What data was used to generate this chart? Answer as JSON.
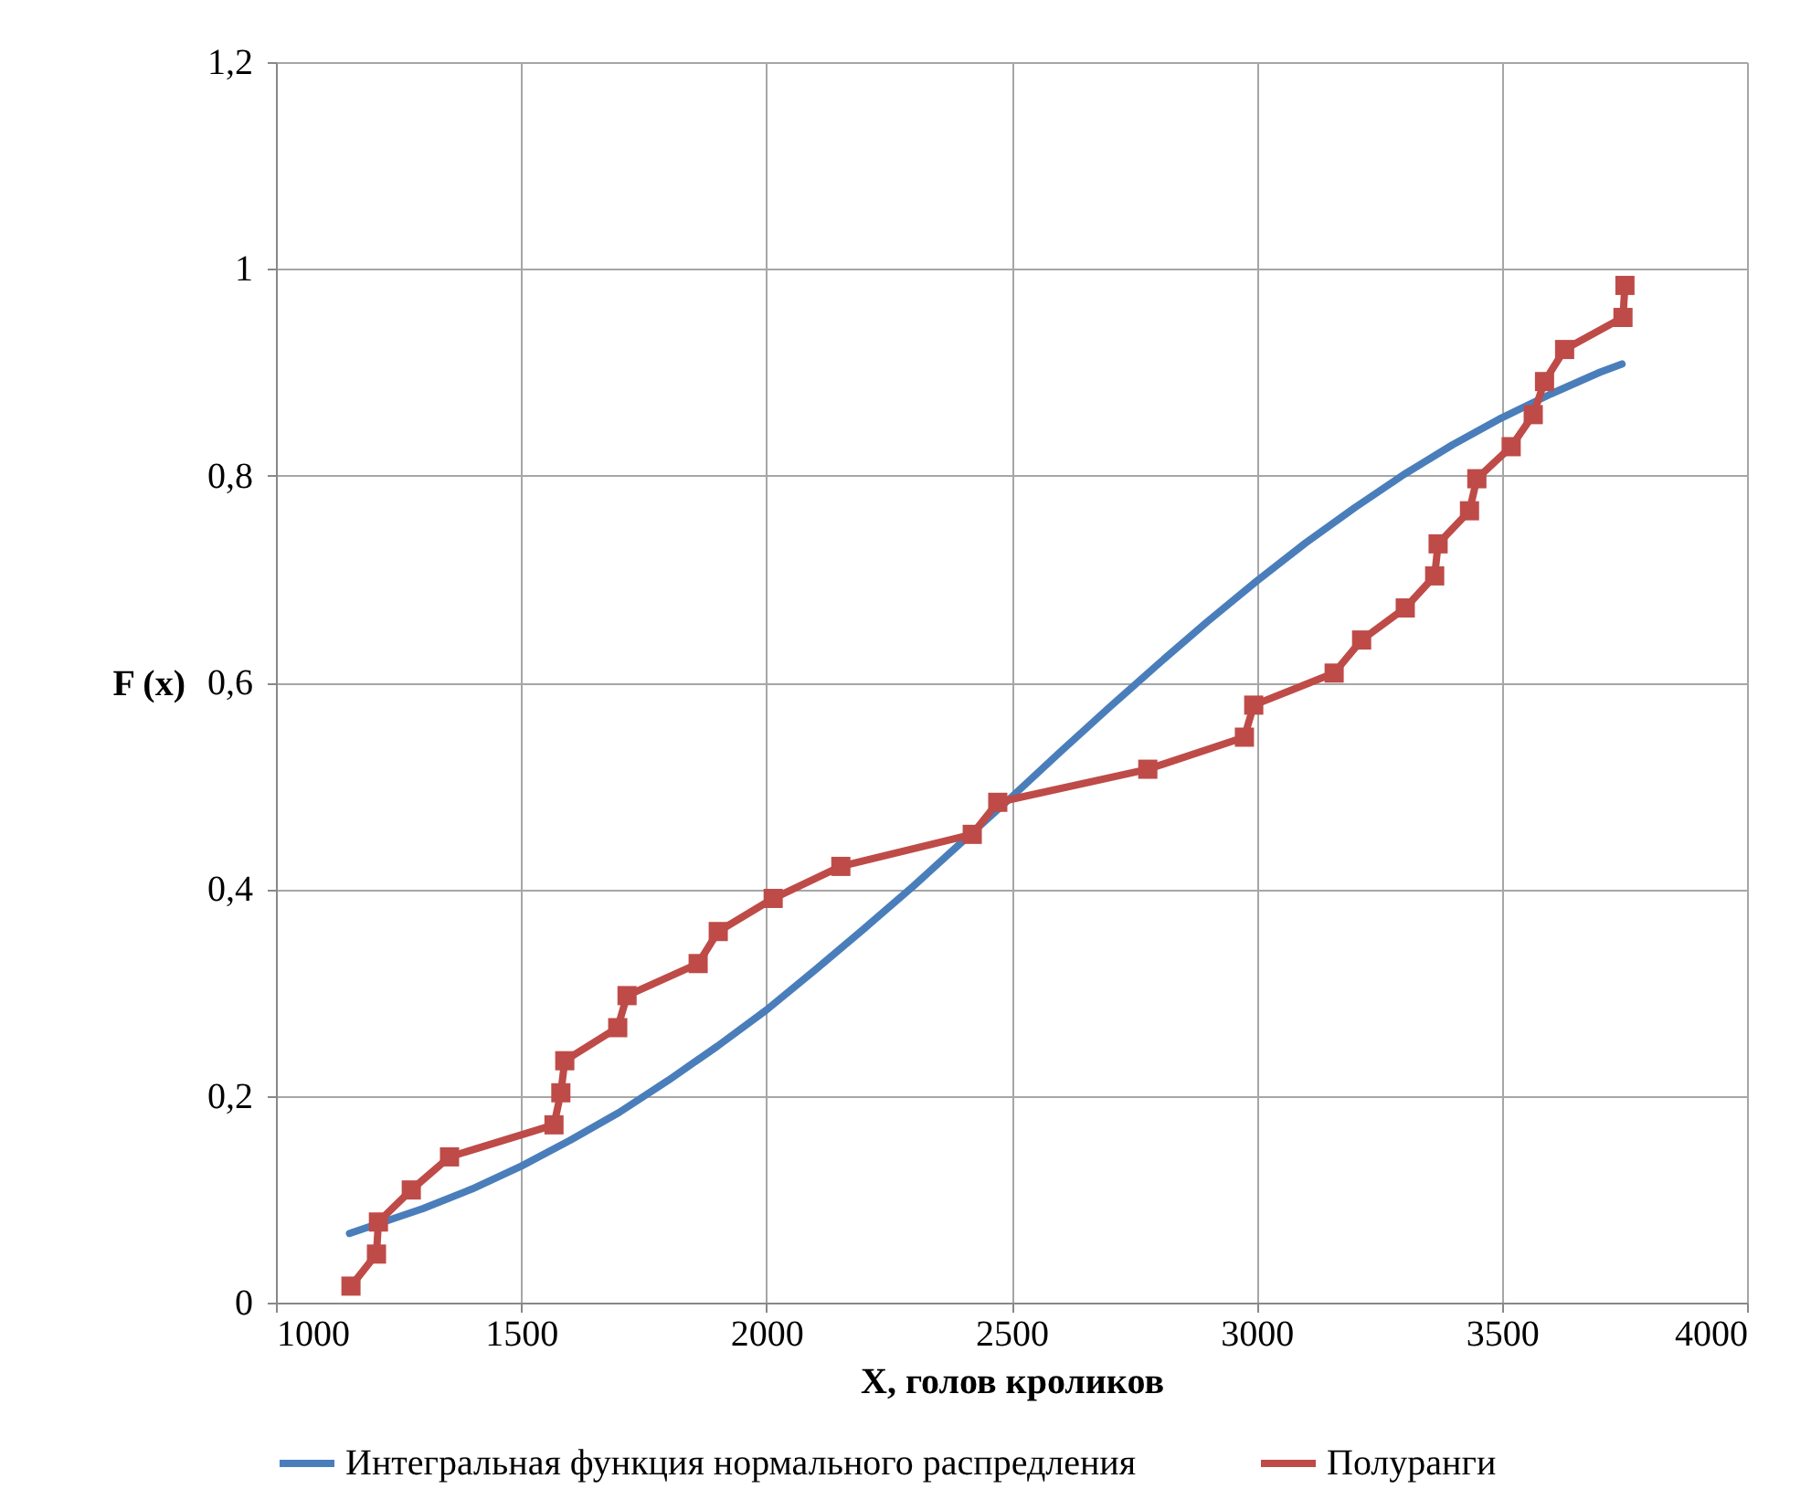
{
  "chart_data": {
    "type": "line",
    "xlabel": "X, голов кроликов",
    "ylabel": "F (x)",
    "xlim": [
      1000,
      4000
    ],
    "xticks": [
      1000,
      1500,
      2000,
      2500,
      3000,
      3500,
      4000
    ],
    "ylim": [
      0,
      1.2
    ],
    "yticks": [
      0,
      {
        "value": 0.2,
        "label": "0,2"
      },
      {
        "value": 0.4,
        "label": "0,4"
      },
      {
        "value": 0.6,
        "label": "0,6"
      },
      {
        "value": 0.8,
        "label": "0,8"
      },
      1,
      {
        "value": 1.2,
        "label": "1,2"
      }
    ],
    "grid": true,
    "legend": "bottom",
    "series": [
      {
        "name": "Интегральная функция нормального распредления",
        "color": "#4a7ebb",
        "marker": "none",
        "x": [
          1150,
          1300,
          1400,
          1500,
          1600,
          1700,
          1800,
          1900,
          2000,
          2100,
          2200,
          2300,
          2400,
          2500,
          2600,
          2700,
          2800,
          2900,
          3000,
          3100,
          3200,
          3300,
          3400,
          3500,
          3600,
          3700,
          3745
        ],
        "values": [
          0.067,
          0.091,
          0.11,
          0.132,
          0.157,
          0.184,
          0.215,
          0.248,
          0.283,
          0.322,
          0.362,
          0.403,
          0.446,
          0.489,
          0.533,
          0.576,
          0.618,
          0.659,
          0.698,
          0.735,
          0.769,
          0.801,
          0.83,
          0.856,
          0.879,
          0.9,
          0.908
        ]
      },
      {
        "name": "Полуранги",
        "color": "#be4b48",
        "marker": "square",
        "x": [
          1153,
          1205,
          1209,
          1276,
          1354,
          1567,
          1581,
          1589,
          1697,
          1716,
          1861,
          1902,
          2014,
          2152,
          2420,
          2472,
          2778,
          2975,
          2994,
          3158,
          3214,
          3303,
          3363,
          3370,
          3434,
          3449,
          3519,
          3564,
          3587,
          3628,
          3747,
          3751
        ],
        "values": [
          0.016,
          0.047,
          0.078,
          0.109,
          0.141,
          0.172,
          0.203,
          0.234,
          0.266,
          0.297,
          0.328,
          0.359,
          0.391,
          0.422,
          0.453,
          0.484,
          0.516,
          0.547,
          0.578,
          0.609,
          0.641,
          0.672,
          0.703,
          0.734,
          0.766,
          0.797,
          0.828,
          0.859,
          0.891,
          0.922,
          0.953,
          0.984
        ]
      }
    ]
  }
}
